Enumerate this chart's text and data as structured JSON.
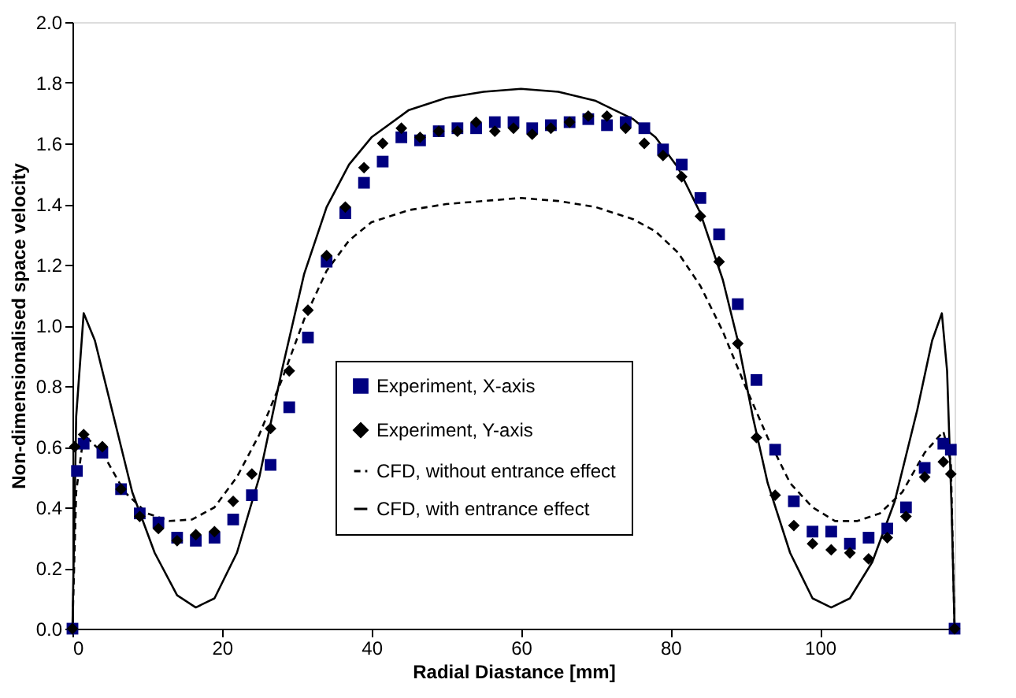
{
  "chart_data": {
    "type": "scatter",
    "xlabel": "Radial Diastance [mm]",
    "ylabel": "Non-dimensionalised space velocity",
    "xlim": [
      0,
      118
    ],
    "xticks": [
      0,
      20,
      40,
      60,
      80,
      100
    ],
    "ylim": [
      0,
      2.0
    ],
    "yticks": [
      {
        "value": 0,
        "label": "0.0"
      },
      {
        "value": 0.2,
        "label": "0.2"
      },
      {
        "value": 0.4,
        "label": "0.4"
      },
      {
        "value": 0.6,
        "label": "0.6"
      },
      {
        "value": 0.8,
        "label": "0.8"
      },
      {
        "value": 1.0,
        "label": "1.0"
      },
      {
        "value": 1.2,
        "label": "1.2"
      },
      {
        "value": 1.4,
        "label": "1.4"
      },
      {
        "value": 1.6,
        "label": "1.6"
      },
      {
        "value": 1.8,
        "label": "1.8"
      },
      {
        "value": 2.0,
        "label": "2.0"
      }
    ],
    "grid": false,
    "legend": "bottom",
    "series": [
      {
        "name": "Experiment, X-axis",
        "marker": "square",
        "color": "#000080",
        "x": [
          0,
          0.6,
          1.5,
          4,
          6.5,
          9,
          11.5,
          14,
          16.5,
          19,
          21.5,
          24,
          26.5,
          29,
          31.5,
          34,
          36.5,
          39,
          41.5,
          44,
          46.5,
          49,
          51.5,
          54,
          56.5,
          59,
          61.5,
          64,
          66.5,
          69,
          71.5,
          74,
          76.5,
          79,
          81.5,
          84,
          86.5,
          89,
          91.5,
          94,
          96.5,
          99,
          101.5,
          104,
          106.5,
          109,
          111.5,
          114,
          116.5,
          117.5,
          118
        ],
        "values": [
          0,
          0.52,
          0.61,
          0.58,
          0.46,
          0.38,
          0.35,
          0.3,
          0.29,
          0.3,
          0.36,
          0.44,
          0.54,
          0.73,
          0.96,
          1.21,
          1.37,
          1.47,
          1.54,
          1.62,
          1.61,
          1.64,
          1.65,
          1.65,
          1.67,
          1.67,
          1.65,
          1.66,
          1.67,
          1.68,
          1.66,
          1.67,
          1.65,
          1.58,
          1.53,
          1.42,
          1.3,
          1.07,
          0.82,
          0.59,
          0.42,
          0.32,
          0.32,
          0.28,
          0.3,
          0.33,
          0.4,
          0.53,
          0.61,
          0.59,
          0
        ]
      },
      {
        "name": "Experiment, Y-axis",
        "marker": "diamond",
        "color": "#000000",
        "x": [
          0,
          0.3,
          1.5,
          4,
          6.5,
          9,
          11.5,
          14,
          16.5,
          19,
          21.5,
          24,
          26.5,
          29,
          31.5,
          34,
          36.5,
          39,
          41.5,
          44,
          46.5,
          49,
          51.5,
          54,
          56.5,
          59,
          61.5,
          64,
          66.5,
          69,
          71.5,
          74,
          76.5,
          79,
          81.5,
          84,
          86.5,
          89,
          91.5,
          94,
          96.5,
          99,
          101.5,
          104,
          106.5,
          109,
          111.5,
          114,
          116.5,
          117.5,
          118
        ],
        "values": [
          0,
          0.6,
          0.64,
          0.6,
          0.46,
          0.37,
          0.33,
          0.29,
          0.31,
          0.32,
          0.42,
          0.51,
          0.66,
          0.85,
          1.05,
          1.23,
          1.39,
          1.52,
          1.6,
          1.65,
          1.62,
          1.64,
          1.64,
          1.67,
          1.64,
          1.65,
          1.63,
          1.65,
          1.67,
          1.69,
          1.69,
          1.65,
          1.6,
          1.56,
          1.49,
          1.36,
          1.21,
          0.94,
          0.63,
          0.44,
          0.34,
          0.28,
          0.26,
          0.25,
          0.23,
          0.3,
          0.37,
          0.5,
          0.55,
          0.51,
          0
        ]
      },
      {
        "name": "CFD, without entrance effect",
        "type": "line",
        "marker": "none",
        "line_style": "dashed",
        "color": "#000000",
        "x": [
          0,
          0.5,
          1.5,
          4,
          7,
          10,
          13,
          16,
          19,
          22,
          25,
          28,
          31,
          34,
          37,
          40,
          45,
          50,
          55,
          60,
          65,
          70,
          75,
          78,
          81,
          84,
          87,
          90,
          93,
          96,
          99,
          102,
          105,
          108,
          111,
          114,
          116.5,
          117.5,
          118
        ],
        "values": [
          0,
          0.45,
          0.64,
          0.58,
          0.45,
          0.38,
          0.355,
          0.36,
          0.4,
          0.5,
          0.64,
          0.82,
          1.02,
          1.18,
          1.28,
          1.34,
          1.38,
          1.4,
          1.41,
          1.42,
          1.41,
          1.39,
          1.35,
          1.31,
          1.24,
          1.13,
          0.98,
          0.8,
          0.63,
          0.48,
          0.4,
          0.355,
          0.355,
          0.38,
          0.45,
          0.58,
          0.65,
          0.55,
          0
        ]
      },
      {
        "name": "CFD, with entrance effect",
        "type": "line",
        "marker": "none",
        "line_style": "solid",
        "color": "#000000",
        "x": [
          0,
          0.5,
          1.5,
          3,
          5,
          8,
          11,
          14,
          16.5,
          19,
          22,
          25,
          28,
          31,
          34,
          37,
          40,
          45,
          50,
          55,
          60,
          65,
          70,
          75,
          78,
          81,
          84,
          87,
          89,
          91,
          93,
          96,
          99,
          101.5,
          104,
          107,
          110,
          113,
          115,
          116.3,
          117,
          117.6,
          118
        ],
        "values": [
          0,
          0.7,
          1.04,
          0.95,
          0.75,
          0.45,
          0.25,
          0.11,
          0.07,
          0.1,
          0.25,
          0.5,
          0.85,
          1.17,
          1.39,
          1.53,
          1.62,
          1.71,
          1.75,
          1.77,
          1.78,
          1.77,
          1.74,
          1.68,
          1.62,
          1.52,
          1.37,
          1.15,
          0.95,
          0.7,
          0.48,
          0.25,
          0.1,
          0.07,
          0.1,
          0.22,
          0.42,
          0.72,
          0.95,
          1.04,
          0.85,
          0.4,
          0
        ]
      }
    ]
  }
}
